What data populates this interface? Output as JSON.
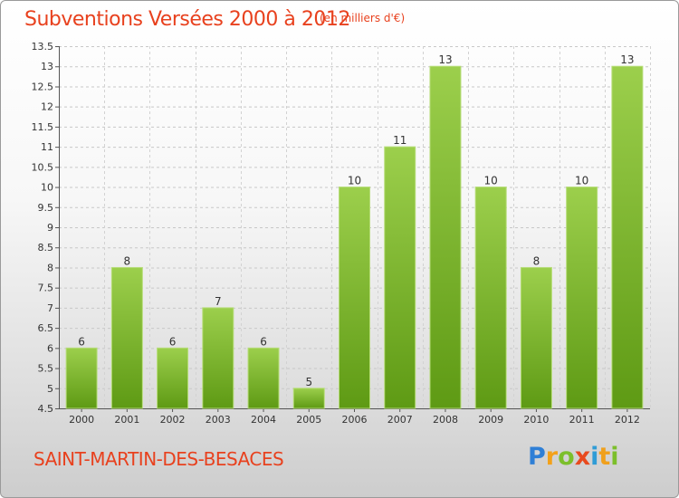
{
  "title": "Subventions Versées 2000 à 2012",
  "subtitle": "(en milliers d'€)",
  "commune": "SAINT-MARTIN-DES-BESACES",
  "logo": {
    "text": "Proxiti"
  },
  "colors": {
    "bar_top": "#9ccf4c",
    "bar_bottom": "#5e9a14",
    "title": "#e8411e"
  },
  "chart_data": {
    "type": "bar",
    "title": "Subventions Versées 2000 à 2012",
    "subtitle": "(en milliers d'€)",
    "categories": [
      "2000",
      "2001",
      "2002",
      "2003",
      "2004",
      "2005",
      "2006",
      "2007",
      "2008",
      "2009",
      "2010",
      "2011",
      "2012"
    ],
    "values": [
      6,
      8,
      6,
      7,
      6,
      5,
      10,
      11,
      13,
      10,
      8,
      10,
      13
    ],
    "data_labels": [
      "6",
      "8",
      "6",
      "7",
      "6",
      "5",
      "10",
      "11",
      "13",
      "10",
      "8",
      "10",
      "13"
    ],
    "ylim": [
      4.5,
      13.5
    ],
    "yticks": [
      4.5,
      5,
      5.5,
      6,
      6.5,
      7,
      7.5,
      8,
      8.5,
      9,
      9.5,
      10,
      10.5,
      11,
      11.5,
      12,
      12.5,
      13,
      13.5
    ],
    "ytick_labels": [
      "4.5",
      "5",
      "5.5",
      "6",
      "6.5",
      "7",
      "7.5",
      "8",
      "8.5",
      "9",
      "9.5",
      "10",
      "10.5",
      "11",
      "11.5",
      "12",
      "12.5",
      "13",
      "13.5"
    ],
    "grid": true,
    "xlabel": "",
    "ylabel": ""
  }
}
